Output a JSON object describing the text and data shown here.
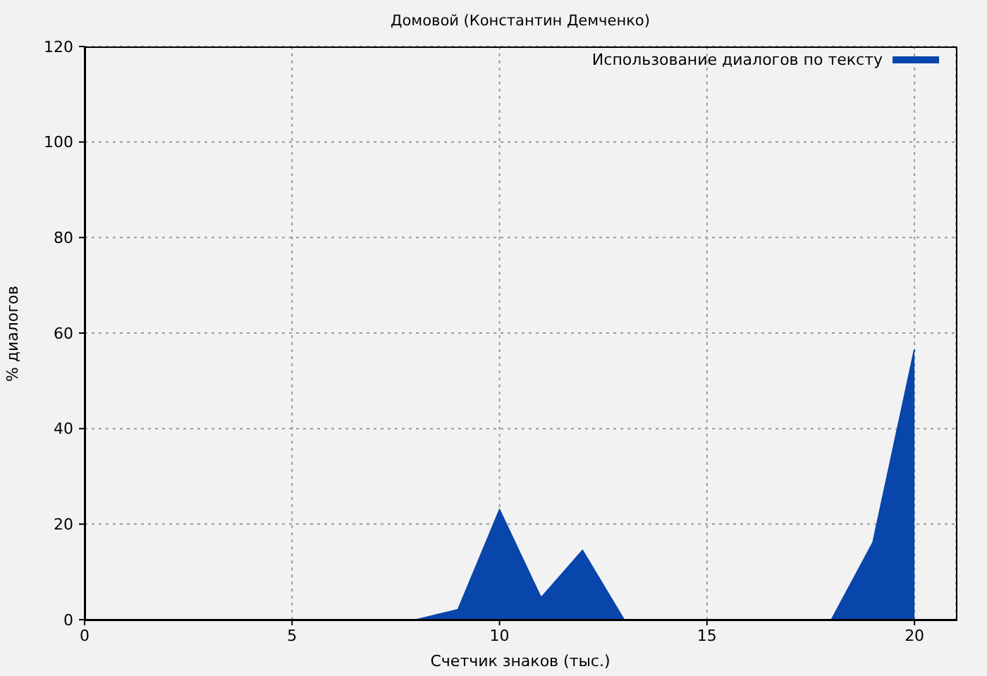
{
  "chart_data": {
    "type": "area",
    "title": "Домовой (Константин Демченко)",
    "xlabel": "Счетчик знаков (тыс.)",
    "ylabel": "% диалогов",
    "x": [
      0,
      1,
      2,
      3,
      4,
      5,
      6,
      7,
      8,
      9,
      10,
      11,
      12,
      13,
      14,
      15,
      16,
      17,
      18,
      19,
      20
    ],
    "series": [
      {
        "name": "Использование диалогов по тексту",
        "color": "#0846ab",
        "values": [
          0,
          0,
          0,
          0,
          0,
          0,
          0,
          0,
          0,
          2.1,
          23,
          4.6,
          14.5,
          0,
          0,
          0,
          0,
          0,
          0,
          16.2,
          56.6
        ]
      }
    ],
    "xlim": [
      0,
      21
    ],
    "xticks": [
      0,
      5,
      10,
      15,
      20
    ],
    "ylim": [
      0,
      120
    ],
    "yticks": [
      0,
      20,
      40,
      60,
      80,
      100,
      120
    ],
    "grid": true,
    "legend": "top right"
  }
}
